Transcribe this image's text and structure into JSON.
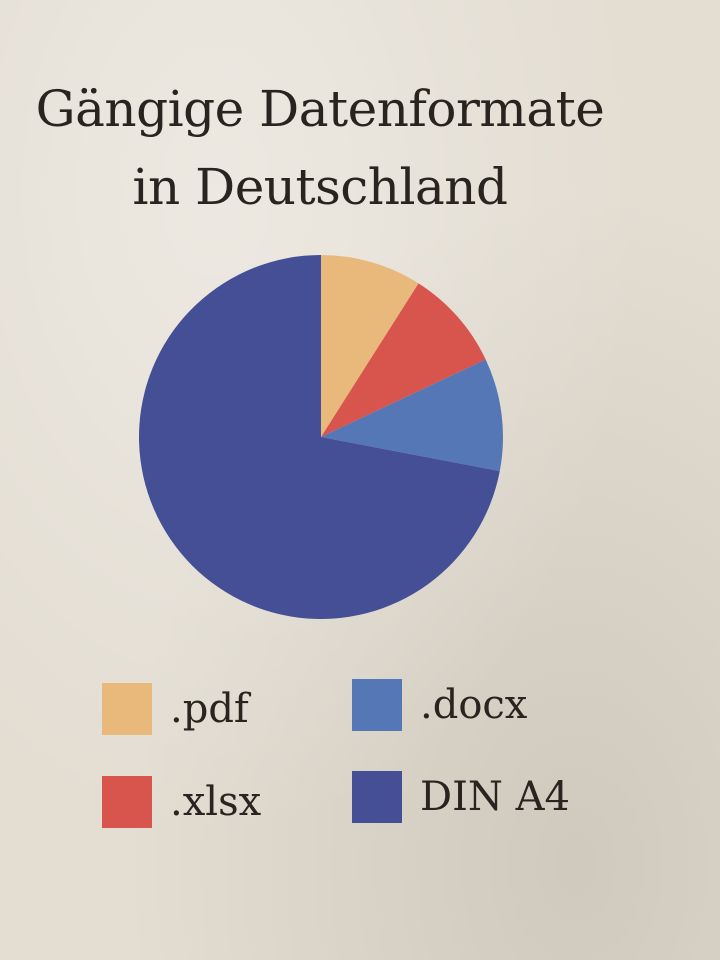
{
  "chart_data": {
    "type": "pie",
    "title": [
      "Gängige Datenformate",
      "in Deutschland"
    ],
    "slices": [
      {
        "label": ".pdf",
        "value": 9,
        "color": "#e8b97a"
      },
      {
        "label": ".xlsx",
        "value": 9,
        "color": "#d8554e"
      },
      {
        "label": ".docx",
        "value": 10,
        "color": "#5577b6"
      },
      {
        "label": "DIN A4",
        "value": 72,
        "color": "#444f96"
      }
    ],
    "legend": {
      "placement": "bottom",
      "columns": 2
    }
  }
}
